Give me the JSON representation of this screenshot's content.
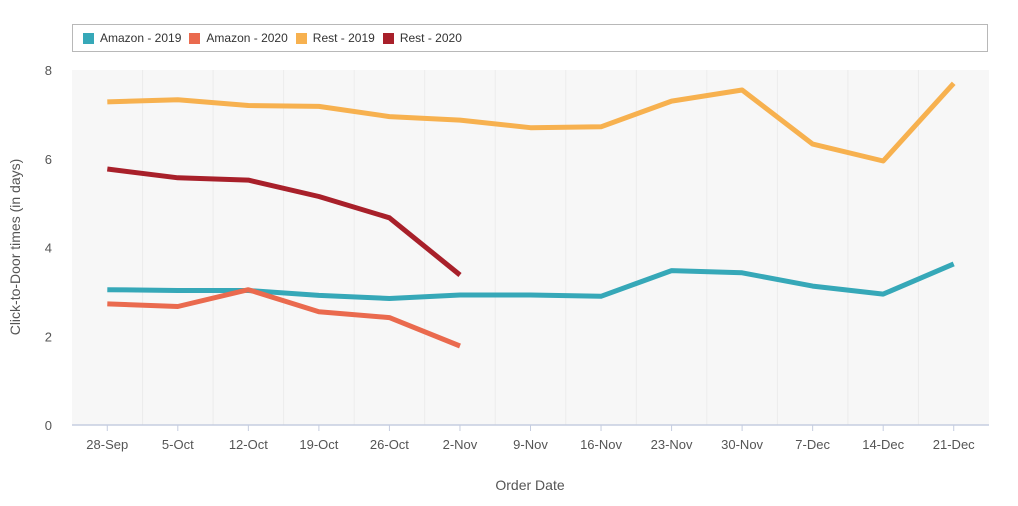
{
  "chart_data": {
    "type": "line",
    "xlabel": "Order Date",
    "ylabel": "Click-to-Door times (in days)",
    "ylim": [
      0,
      8
    ],
    "yticks": [
      0,
      2,
      4,
      6,
      8
    ],
    "grid": true,
    "legend_position": "top",
    "categories": [
      "28-Sep",
      "5-Oct",
      "12-Oct",
      "19-Oct",
      "26-Oct",
      "2-Nov",
      "9-Nov",
      "16-Nov",
      "23-Nov",
      "30-Nov",
      "7-Dec",
      "14-Dec",
      "21-Dec"
    ],
    "series": [
      {
        "name": "Amazon - 2019",
        "color": "#36a8b8",
        "values": [
          3.05,
          3.03,
          3.03,
          2.92,
          2.85,
          2.93,
          2.93,
          2.9,
          3.48,
          3.43,
          3.13,
          2.95,
          3.63
        ]
      },
      {
        "name": "Amazon - 2020",
        "color": "#ea6a4e",
        "values": [
          2.73,
          2.67,
          3.05,
          2.55,
          2.42,
          1.78,
          null,
          null,
          null,
          null,
          null,
          null,
          null
        ]
      },
      {
        "name": "Rest - 2019",
        "color": "#f7b14f",
        "values": [
          7.28,
          7.33,
          7.2,
          7.18,
          6.95,
          6.87,
          6.7,
          6.72,
          7.3,
          7.55,
          6.33,
          5.95,
          7.7
        ]
      },
      {
        "name": "Rest - 2020",
        "color": "#a8202a",
        "values": [
          5.77,
          5.57,
          5.52,
          5.15,
          4.67,
          3.38,
          null,
          null,
          null,
          null,
          null,
          null,
          null
        ]
      }
    ]
  }
}
